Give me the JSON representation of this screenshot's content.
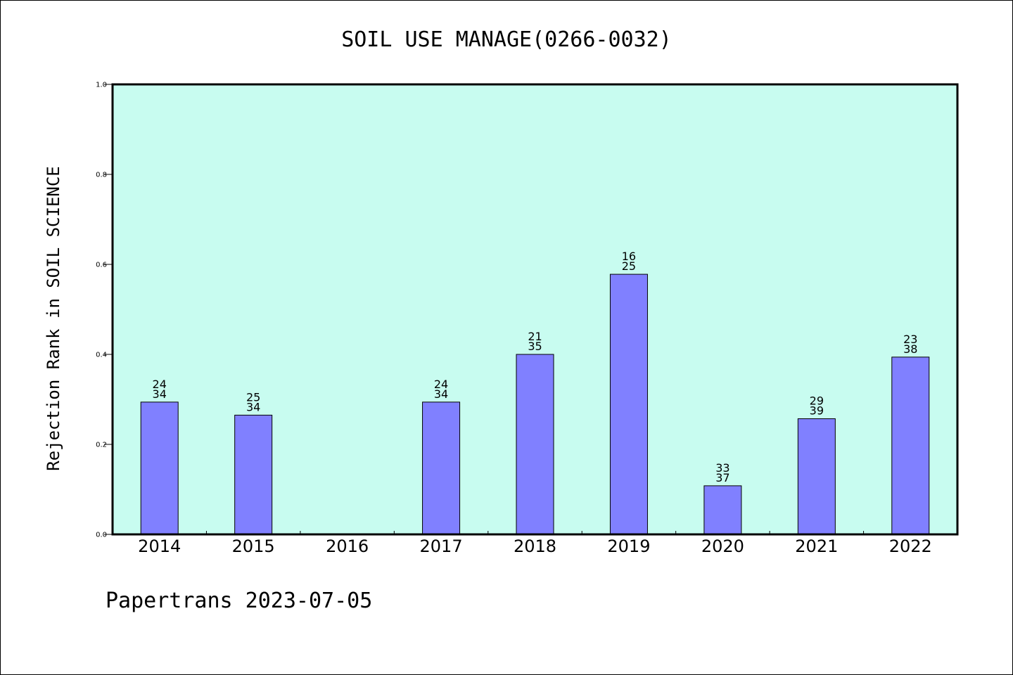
{
  "colors": {
    "plot_background": "#c8fcf0",
    "bar_fill": "#8080ff",
    "bar_stroke": "#000000",
    "axis": "#000000"
  },
  "chart_data": {
    "type": "bar",
    "title": "SOIL USE MANAGE(0266-0032)",
    "xlabel": "",
    "ylabel": "Rejection Rank in SOIL SCIENCE",
    "categories": [
      "2014",
      "2015",
      "2016",
      "2017",
      "2018",
      "2019",
      "2020",
      "2021",
      "2022"
    ],
    "values": [
      0.294,
      0.265,
      null,
      0.294,
      0.4,
      0.578,
      0.108,
      0.257,
      0.394
    ],
    "labels_top": [
      "24",
      "25",
      "",
      "24",
      "21",
      "16",
      "33",
      "29",
      "23"
    ],
    "labels_bottom": [
      "34",
      "34",
      "",
      "34",
      "35",
      "25",
      "37",
      "39",
      "38"
    ],
    "ylim": [
      0,
      1
    ],
    "yticks": [
      "0.0",
      "0.2",
      "0.4",
      "0.6",
      "0.8",
      "1.0"
    ],
    "grid": false,
    "legend": "none"
  },
  "footer": {
    "text": "Papertrans 2023-07-05"
  }
}
